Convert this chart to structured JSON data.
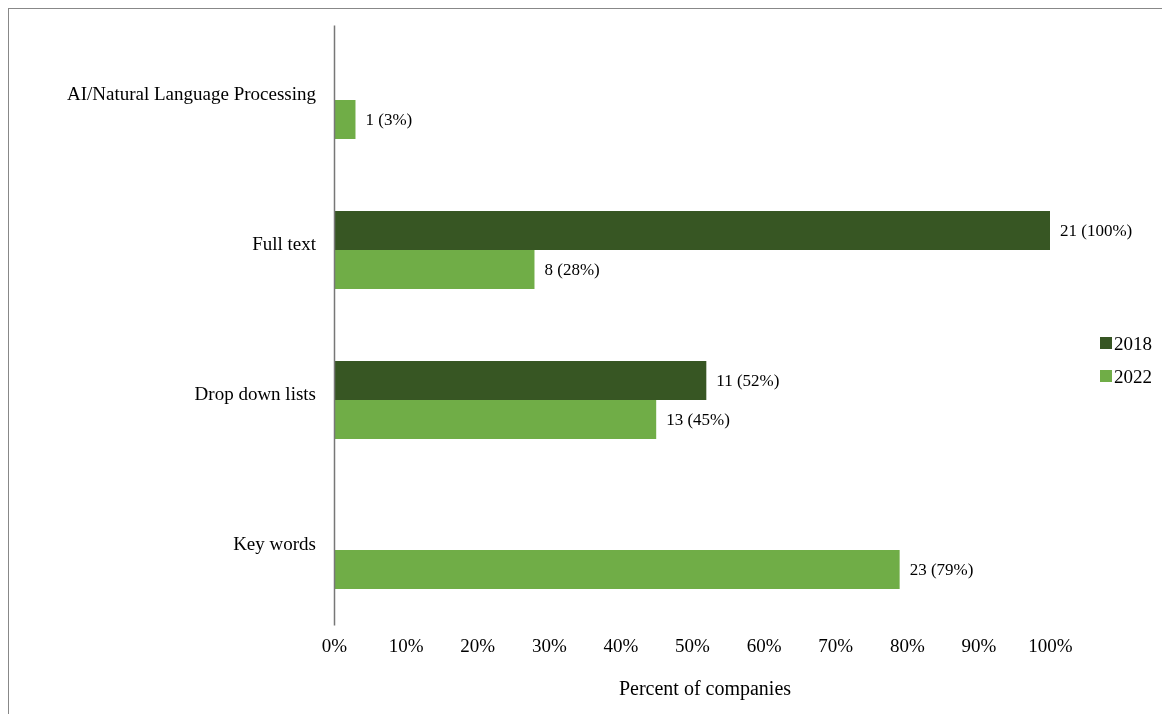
{
  "chart_data": {
    "type": "bar",
    "orientation": "horizontal",
    "xlabel": "Percent of companies",
    "categories": [
      "AI/Natural Language Processing",
      "Full text",
      "Drop down lists",
      "Key words"
    ],
    "series": [
      {
        "name": "2018",
        "color": "#375623",
        "values": [
          null,
          100,
          52,
          null
        ],
        "value_labels": [
          null,
          "21 (100%)",
          "11 (52%)",
          null
        ]
      },
      {
        "name": "2022",
        "color": "#70ad47",
        "values": [
          3,
          28,
          45,
          79
        ],
        "value_labels": [
          "1 (3%)",
          "8 (28%)",
          "13 (45%)",
          "23 (79%)"
        ]
      }
    ],
    "xlim": [
      0,
      100
    ],
    "xticks": [
      {
        "value": 0,
        "label": "0%"
      },
      {
        "value": 10,
        "label": "10%"
      },
      {
        "value": 20,
        "label": "20%"
      },
      {
        "value": 30,
        "label": "30%"
      },
      {
        "value": 40,
        "label": "40%"
      },
      {
        "value": 50,
        "label": "50%"
      },
      {
        "value": 60,
        "label": "60%"
      },
      {
        "value": 70,
        "label": "70%"
      },
      {
        "value": 80,
        "label": "80%"
      },
      {
        "value": 90,
        "label": "90%"
      },
      {
        "value": 100,
        "label": "100%"
      }
    ],
    "legend": "right"
  }
}
